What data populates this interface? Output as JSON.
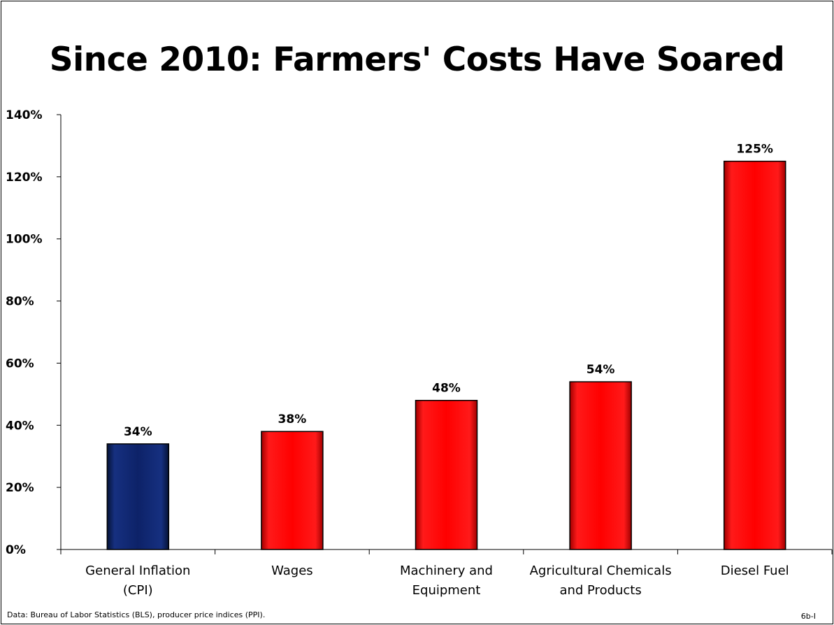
{
  "chart_data": {
    "type": "bar",
    "title": "Since 2010:  Farmers' Costs Have Soared",
    "categories": [
      [
        "General Inflation",
        "(CPI)"
      ],
      [
        "Wages"
      ],
      [
        "Machinery and",
        "Equipment"
      ],
      [
        "Agricultural Chemicals",
        "and Products"
      ],
      [
        "Diesel Fuel"
      ]
    ],
    "values": [
      34,
      38,
      48,
      54,
      125
    ],
    "data_labels": [
      "34%",
      "38%",
      "48%",
      "54%",
      "125%"
    ],
    "bar_colors": [
      "#0d2060",
      "#ff0000",
      "#ff0000",
      "#ff0000",
      "#ff0000"
    ],
    "ylim": [
      0,
      140
    ],
    "yticks": [
      0,
      20,
      40,
      60,
      80,
      100,
      120,
      140
    ],
    "ytick_labels": [
      "0%",
      "20%",
      "40%",
      "60%",
      "80%",
      "100%",
      "120%",
      "140%"
    ],
    "xlabel": "",
    "ylabel": "",
    "grid": false,
    "legend": "none"
  },
  "footer": {
    "source": "Data:  Bureau of Labor Statistics (BLS), producer price indices (PPI).",
    "code": "6b-I"
  }
}
